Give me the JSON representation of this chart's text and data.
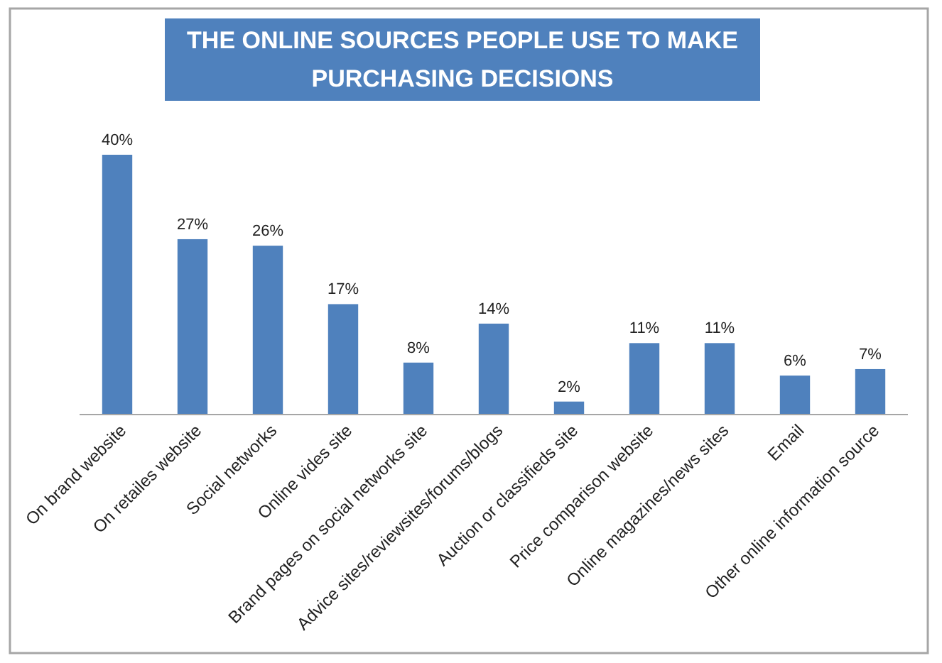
{
  "chart_data": {
    "type": "bar",
    "title": "THE ONLINE SOURCES PEOPLE USE TO MAKE PURCHASING DECISIONS",
    "categories": [
      "On brand website",
      "On retailes website",
      "Social networks",
      "Online vides site",
      "Brand pages on social networks site",
      "Advice sites/reviewsites/forums/blogs",
      "Auction or classifieds site",
      "Price comparison website",
      "Online magazines/news sites",
      "Email",
      "Other online information source"
    ],
    "values": [
      40,
      27,
      26,
      17,
      8,
      14,
      2,
      11,
      11,
      6,
      7
    ],
    "value_labels": [
      "40%",
      "27%",
      "26%",
      "17%",
      "8%",
      "14%",
      "2%",
      "11%",
      "11%",
      "6%",
      "7%"
    ],
    "color": "#4f81bd"
  }
}
